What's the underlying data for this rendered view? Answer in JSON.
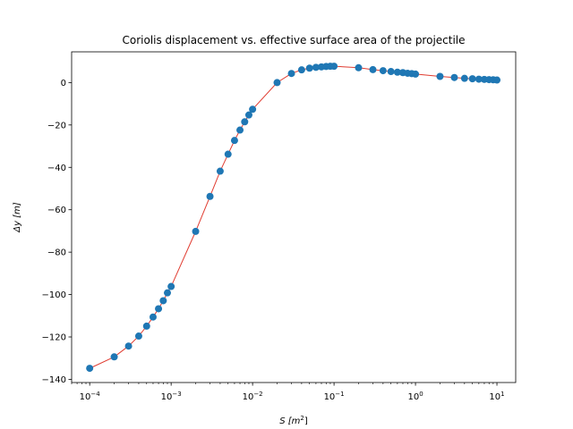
{
  "chart_data": {
    "type": "scatter",
    "title": "Coriolis displacement vs. effective surface area of the projectile",
    "xlabel": {
      "base": "S [m",
      "sup": "2",
      "end": "]"
    },
    "ylabel": "Δy [m]",
    "xscale": "log",
    "xlim": [
      6e-05,
      17
    ],
    "ylim": [
      -141.5,
      14.5
    ],
    "x_ticks": [
      {
        "value": 0.0001,
        "base": "10",
        "exp": "−4"
      },
      {
        "value": 0.001,
        "base": "10",
        "exp": "−3"
      },
      {
        "value": 0.01,
        "base": "10",
        "exp": "−2"
      },
      {
        "value": 0.1,
        "base": "10",
        "exp": "−1"
      },
      {
        "value": 1,
        "base": "10",
        "exp": "0"
      },
      {
        "value": 10,
        "base": "10",
        "exp": "1"
      }
    ],
    "y_ticks": [
      {
        "value": 0,
        "label": "0"
      },
      {
        "value": -20,
        "label": "−20"
      },
      {
        "value": -40,
        "label": "−40"
      },
      {
        "value": -60,
        "label": "−60"
      },
      {
        "value": -80,
        "label": "−80"
      },
      {
        "value": -100,
        "label": "−100"
      },
      {
        "value": -120,
        "label": "−120"
      },
      {
        "value": -140,
        "label": "−140"
      }
    ],
    "grid": false,
    "legend": "none",
    "colors": {
      "marker": "#1f77b4",
      "line": "#e03c31"
    },
    "series": [
      {
        "x": [
          0.0001,
          0.0002,
          0.0003,
          0.0004,
          0.0005,
          0.0006,
          0.0007,
          0.0008,
          0.0009,
          0.001,
          0.002,
          0.003,
          0.004,
          0.005,
          0.006,
          0.007,
          0.008,
          0.009,
          0.01,
          0.02,
          0.03,
          0.04,
          0.05,
          0.06,
          0.07,
          0.08,
          0.09,
          0.1,
          0.2,
          0.3,
          0.4,
          0.5,
          0.6,
          0.7,
          0.8,
          0.9,
          1,
          2,
          3,
          4,
          5,
          6,
          7,
          8,
          9,
          10
        ],
        "y": [
          -134.8,
          -129.4,
          -124.3,
          -119.6,
          -114.9,
          -110.6,
          -106.7,
          -102.9,
          -99.2,
          -96.2,
          -70.2,
          -53.7,
          -41.8,
          -33.8,
          -27.3,
          -22.4,
          -18.5,
          -15.3,
          -12.6,
          0.0,
          4.3,
          6.0,
          6.8,
          7.2,
          7.4,
          7.6,
          7.7,
          7.7,
          7.0,
          6.1,
          5.6,
          5.2,
          4.9,
          4.7,
          4.4,
          4.2,
          4.0,
          2.9,
          2.4,
          2.0,
          1.8,
          1.6,
          1.5,
          1.4,
          1.3,
          1.2
        ]
      }
    ]
  }
}
